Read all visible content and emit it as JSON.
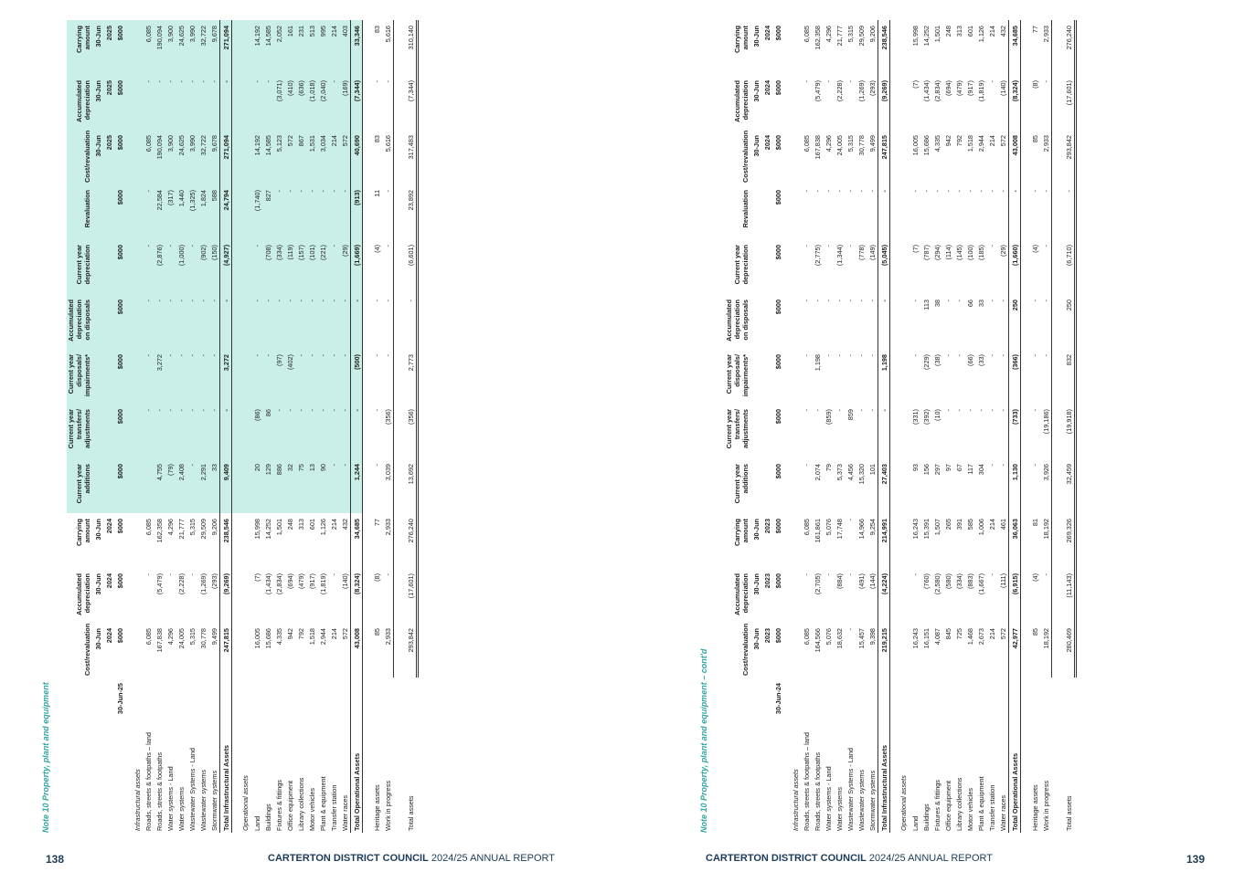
{
  "pages": [
    {
      "title": "Note 10 Property, plant and equipment",
      "label_header": "30-Jun-25",
      "columns": [
        {
          "name": "Cost/revaluation",
          "date": "30-Jun",
          "year": "2024",
          "unit": "$000"
        },
        {
          "name": "Accumulated depreciation",
          "date": "30-Jun",
          "year": "2024",
          "unit": "$000"
        },
        {
          "name": "Carrying amount",
          "date": "30-Jun",
          "year": "2024",
          "unit": "$000"
        },
        {
          "name": "Current year",
          "sub": "additions",
          "unit": "$000"
        },
        {
          "name": "Current year",
          "sub": "transfers/ adjustments",
          "unit": "$000"
        },
        {
          "name": "Current year",
          "sub": "disposals/ impairments*",
          "unit": "$000"
        },
        {
          "name": "Accumulated depreciation",
          "sub": "on disposals",
          "unit": "$000"
        },
        {
          "name": "Current year",
          "sub": "depreciation",
          "unit": "$000"
        },
        {
          "name": "Revaluation",
          "unit": "$000"
        },
        {
          "name": "Cost/revaluation",
          "date": "30-Jun",
          "year": "2025",
          "unit": "$000"
        },
        {
          "name": "Accumulated depreciation",
          "date": "30-Jun",
          "year": "2025",
          "unit": "$000"
        },
        {
          "name": "Carrying amount",
          "date": "30-Jun",
          "year": "2025",
          "unit": "$000"
        }
      ],
      "rows": [
        {
          "kind": "section",
          "label": "Infrastructural assets"
        },
        {
          "kind": "item",
          "label": "Roads, streets & footpaths – land",
          "cells": [
            "6,085",
            "-",
            "6,085",
            null,
            "-",
            "-",
            "-",
            "-",
            "-",
            "6,085",
            "-",
            "6,085"
          ]
        },
        {
          "kind": "item",
          "label": "Roads, streets & footpaths",
          "cells": [
            "167,838",
            "(5,479)",
            "162,358",
            "4,755",
            "-",
            "3,272",
            "-",
            "(2,876)",
            "22,584",
            "190,094",
            "-",
            "190,094"
          ]
        },
        {
          "kind": "item",
          "label": "Water systems - Land",
          "cells": [
            "4,296",
            "-",
            "4,296",
            "(79)",
            "-",
            "-",
            "-",
            "-",
            "(317)",
            "3,900",
            "-",
            "3,900"
          ]
        },
        {
          "kind": "item",
          "label": "Water systems",
          "cells": [
            "24,005",
            "(2,228)",
            "21,777",
            "2,408",
            "-",
            "-",
            "-",
            "(1,000)",
            "1,440",
            "24,625",
            "-",
            "24,625"
          ]
        },
        {
          "kind": "item",
          "label": "Wastewater Systems - Land",
          "cells": [
            "5,315",
            "-",
            "5,315",
            "-",
            "-",
            "-",
            "-",
            "-",
            "(1,325)",
            "3,990",
            "-",
            "3,990"
          ]
        },
        {
          "kind": "item",
          "label": "Wastewater systems",
          "cells": [
            "30,778",
            "(1,269)",
            "29,509",
            "2,291",
            "-",
            "-",
            "-",
            "(902)",
            "1,824",
            "32,722",
            "-",
            "32,722"
          ]
        },
        {
          "kind": "item",
          "label": "Stormwater systems",
          "cells": [
            "9,499",
            "(293)",
            "9,206",
            "33",
            "-",
            "-",
            "-",
            "(150)",
            "588",
            "9,678",
            "-",
            "9,678"
          ]
        },
        {
          "kind": "subtotal",
          "label": "Total Infrastructural Assets",
          "cells": [
            "247,815",
            "(9,269)",
            "238,546",
            "9,409",
            "-",
            "3,272",
            "-",
            "(4,927)",
            "24,794",
            "271,094",
            "-",
            "271,094"
          ]
        },
        {
          "kind": "section",
          "label": "Operational assets"
        },
        {
          "kind": "item",
          "label": "Land",
          "cells": [
            "16,005",
            "(7)",
            "15,998",
            "20",
            "(86)",
            "-",
            "-",
            "-",
            "(1,740)",
            "14,192",
            "-",
            "14,192"
          ]
        },
        {
          "kind": "item",
          "label": "Buildings",
          "cells": [
            "15,686",
            "(1,434)",
            "14,252",
            "129",
            "86",
            "-",
            "-",
            "(708)",
            "827",
            "14,585",
            "-",
            "14,585"
          ]
        },
        {
          "kind": "item",
          "label": "Fixtures & fittings",
          "cells": [
            "4,335",
            "(2,834)",
            "1,501",
            "886",
            "-",
            "(97)",
            "-",
            "(334)",
            "-",
            "5,123",
            "(3,071)",
            "2,052"
          ]
        },
        {
          "kind": "item",
          "label": "Office equipment",
          "cells": [
            "942",
            "(694)",
            "248",
            "32",
            "-",
            "(402)",
            "-",
            "(119)",
            "-",
            "572",
            "(410)",
            "161"
          ]
        },
        {
          "kind": "item",
          "label": "Library collections",
          "cells": [
            "792",
            "(479)",
            "313",
            "75",
            "-",
            "-",
            "-",
            "(157)",
            "-",
            "867",
            "(636)",
            "231"
          ]
        },
        {
          "kind": "item",
          "label": "Motor vehicles",
          "cells": [
            "1,518",
            "(917)",
            "601",
            "13",
            "-",
            "-",
            "-",
            "(101)",
            "-",
            "1,531",
            "(1,018)",
            "513"
          ]
        },
        {
          "kind": "item",
          "label": "Plant & equipment",
          "cells": [
            "2,944",
            "(1,819)",
            "1,126",
            "90",
            "-",
            "-",
            "-",
            "(221)",
            "-",
            "3,034",
            "(2,040)",
            "995"
          ]
        },
        {
          "kind": "item",
          "label": "Transfer station",
          "cells": [
            "214",
            "-",
            "214",
            "-",
            "-",
            "-",
            "-",
            "-",
            "-",
            "214",
            "-",
            "214"
          ]
        },
        {
          "kind": "item",
          "label": "Water races",
          "cells": [
            "572",
            "(140)",
            "432",
            "-",
            "-",
            "-",
            "-",
            "(29)",
            "-",
            "572",
            "(169)",
            "403"
          ]
        },
        {
          "kind": "subtotal",
          "label": "Total Operational Assets",
          "cells": [
            "43,008",
            "(8,324)",
            "34,685",
            "1,244",
            "-",
            "(500)",
            "-",
            "(1,669)",
            "(913)",
            "40,690",
            "(7,344)",
            "33,346"
          ]
        },
        {
          "kind": "item",
          "label": "Heritage assets",
          "cells": [
            "85",
            "(8)",
            "77",
            "-",
            "-",
            "-",
            "-",
            "(4)",
            "11",
            "83",
            "-",
            "83"
          ]
        },
        {
          "kind": "item",
          "label": "Work in progress",
          "cells": [
            "2,933",
            "-",
            "2,933",
            "3,039",
            "(356)",
            "-",
            "-",
            "-",
            "-",
            "5,616",
            "-",
            "5,616"
          ]
        },
        {
          "kind": "total",
          "label": "Total assets",
          "cells": [
            "293,842",
            "(17,601)",
            "276,240",
            "13,692",
            "(356)",
            "2,773",
            "-",
            "(6,601)",
            "23,892",
            "317,483",
            "(7,344)",
            "310,140"
          ]
        }
      ],
      "footer": {
        "page_number": "138",
        "org": "CARTERTON DISTRICT COUNCIL",
        "report": "2024/25 ANNUAL REPORT"
      }
    },
    {
      "title": "Note 10 Property, plant and equipment – cont'd",
      "label_header": "30-Jun-24",
      "columns": [
        {
          "name": "Cost/revaluation",
          "date": "30-Jun",
          "year": "2023",
          "unit": "$000"
        },
        {
          "name": "Accumulated depreciation",
          "date": "30-Jun",
          "year": "2023",
          "unit": "$000"
        },
        {
          "name": "Carrying amount",
          "date": "30-Jun",
          "year": "2023",
          "unit": "$000"
        },
        {
          "name": "Current year",
          "sub": "additions",
          "unit": "$000"
        },
        {
          "name": "Current year",
          "sub": "transfers/ adjustments",
          "unit": "$000"
        },
        {
          "name": "Current year",
          "sub": "disposals/ impairments*",
          "unit": "$000"
        },
        {
          "name": "Accumulated depreciation",
          "sub": "on disposals",
          "unit": "$000"
        },
        {
          "name": "Current year",
          "sub": "depreciation",
          "unit": "$000"
        },
        {
          "name": "Revaluation",
          "unit": "$000"
        },
        {
          "name": "Cost/revaluation",
          "date": "30-Jun",
          "year": "2024",
          "unit": "$000"
        },
        {
          "name": "Accumulated depreciation",
          "date": "30-Jun",
          "year": "2024",
          "unit": "$000"
        },
        {
          "name": "Carrying amount",
          "date": "30-Jun",
          "year": "2024",
          "unit": "$000"
        }
      ],
      "rows": [
        {
          "kind": "section",
          "label": "Infrastructural assets"
        },
        {
          "kind": "item",
          "label": "Roads, streets & footpaths – land",
          "cells": [
            "6,085",
            "-",
            "6,085",
            "-",
            "-",
            "-",
            "-",
            "-",
            "-",
            "6,085",
            "-",
            "6,085"
          ]
        },
        {
          "kind": "item",
          "label": "Roads, streets & footpaths",
          "cells": [
            "164,566",
            "(2,705)",
            "161,861",
            "2,074",
            "-",
            "1,198",
            "-",
            "(2,775)",
            "-",
            "167,838",
            "(5,479)",
            "162,358"
          ]
        },
        {
          "kind": "item",
          "label": "Water systems - Land",
          "cells": [
            "5,076",
            "-",
            "5,076",
            "79",
            "(859)",
            "-",
            "-",
            "-",
            "-",
            "4,296",
            "-",
            "4,296"
          ]
        },
        {
          "kind": "item",
          "label": "Water systems",
          "cells": [
            "18,632",
            "(884)",
            "17,748",
            "5,373",
            "-",
            "-",
            "-",
            "(1,344)",
            "-",
            "24,005",
            "(2,228)",
            "21,777"
          ]
        },
        {
          "kind": "item",
          "label": "Wastewater Systems - Land",
          "cells": [
            "-",
            "-",
            "-",
            "4,456",
            "859",
            "-",
            "-",
            "-",
            "-",
            "5,315",
            "-",
            "5,315"
          ]
        },
        {
          "kind": "item",
          "label": "Wastewater systems",
          "cells": [
            "15,457",
            "(491)",
            "14,966",
            "15,320",
            "-",
            "-",
            "-",
            "(778)",
            "-",
            "30,778",
            "(1,269)",
            "29,509"
          ]
        },
        {
          "kind": "item",
          "label": "Stormwater systems",
          "cells": [
            "9,398",
            "(144)",
            "9,254",
            "101",
            "-",
            "-",
            "-",
            "(149)",
            "-",
            "9,499",
            "(293)",
            "9,206"
          ]
        },
        {
          "kind": "subtotal",
          "label": "Total Infrastructural Assets",
          "cells": [
            "219,215",
            "(4,224)",
            "214,991",
            "27,403",
            "-",
            "1,198",
            "-",
            "(5,045)",
            "-",
            "247,815",
            "(9,269)",
            "238,546"
          ]
        },
        {
          "kind": "section",
          "label": "Operational assets"
        },
        {
          "kind": "item",
          "label": "Land",
          "cells": [
            "16,243",
            "-",
            "16,243",
            "93",
            "(331)",
            "-",
            "-",
            "(7)",
            "-",
            "16,005",
            "(7)",
            "15,998"
          ]
        },
        {
          "kind": "item",
          "label": "Buildings",
          "cells": [
            "16,151",
            "(760)",
            "15,391",
            "156",
            "(392)",
            "(229)",
            "113",
            "(787)",
            "-",
            "15,686",
            "(1,434)",
            "14,252"
          ]
        },
        {
          "kind": "item",
          "label": "Fixtures & fittings",
          "cells": [
            "4,087",
            "(2,580)",
            "1,507",
            "297",
            "(10)",
            "(38)",
            "38",
            "(294)",
            "-",
            "4,335",
            "(2,834)",
            "1,501"
          ]
        },
        {
          "kind": "item",
          "label": "Office equipment",
          "cells": [
            "845",
            "(580)",
            "265",
            "97",
            "-",
            "-",
            "-",
            "(114)",
            "-",
            "942",
            "(694)",
            "248"
          ]
        },
        {
          "kind": "item",
          "label": "Library collections",
          "cells": [
            "725",
            "(334)",
            "391",
            "67",
            "-",
            "-",
            "-",
            "(145)",
            "-",
            "792",
            "(479)",
            "313"
          ]
        },
        {
          "kind": "item",
          "label": "Motor vehicles",
          "cells": [
            "1,468",
            "(883)",
            "585",
            "117",
            "-",
            "(66)",
            "66",
            "(100)",
            "-",
            "1,518",
            "(917)",
            "601"
          ]
        },
        {
          "kind": "item",
          "label": "Plant & equipment",
          "cells": [
            "2,673",
            "(1,667)",
            "1,006",
            "304",
            "-",
            "(33)",
            "33",
            "(185)",
            "-",
            "2,944",
            "(1,819)",
            "1,126"
          ]
        },
        {
          "kind": "item",
          "label": "Transfer station",
          "cells": [
            "214",
            "-",
            "214",
            "-",
            "-",
            "-",
            "-",
            "-",
            "-",
            "214",
            "-",
            "214"
          ]
        },
        {
          "kind": "item",
          "label": "Water races",
          "cells": [
            "572",
            "(111)",
            "461",
            "-",
            "-",
            "-",
            "-",
            "(29)",
            "-",
            "572",
            "(140)",
            "432"
          ]
        },
        {
          "kind": "subtotal",
          "label": "Total Operational Assets",
          "cells": [
            "42,977",
            "(6,915)",
            "36,063",
            "1,130",
            "(733)",
            "(366)",
            "250",
            "(1,660)",
            "-",
            "43,008",
            "(8,324)",
            "34,685"
          ]
        },
        {
          "kind": "item",
          "label": "Heritage assets",
          "cells": [
            "85",
            "(4)",
            "81",
            "-",
            "-",
            "-",
            "-",
            "(4)",
            "-",
            "85",
            "(8)",
            "77"
          ]
        },
        {
          "kind": "item",
          "label": "Work in progress",
          "cells": [
            "18,192",
            "-",
            "18,192",
            "3,926",
            "(19,186)",
            "-",
            "-",
            "-",
            "-",
            "2,933",
            "-",
            "2,933"
          ]
        },
        {
          "kind": "total",
          "label": "Total assets",
          "cells": [
            "280,469",
            "(11,143)",
            "269,326",
            "32,459",
            "(19,918)",
            "832",
            "250",
            "(6,710)",
            "-",
            "293,842",
            "(17,601)",
            "276,240"
          ]
        }
      ],
      "footer": {
        "page_number": "139",
        "org": "CARTERTON DISTRICT COUNCIL",
        "report": "2024/25 ANNUAL REPORT"
      }
    }
  ]
}
